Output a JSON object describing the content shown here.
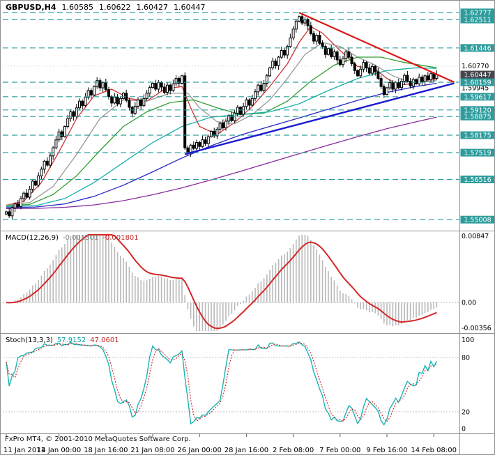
{
  "header": {
    "symbol_period": "GBPUSD,H4",
    "open": "1.60585",
    "high": "1.60622",
    "low": "1.60427",
    "close": "1.60447"
  },
  "price_scale": {
    "plain_labels": [
      {
        "label": "1.60770",
        "price": 1.6077
      },
      {
        "label": "1.59945",
        "price": 1.59945
      }
    ],
    "current": {
      "label": "1.60447",
      "price": 1.60447
    }
  },
  "macd_panel": {
    "label": "MACD(12,26,9)",
    "main_value": "-0.001301",
    "signal_value": "-0.001801",
    "scale_top": "0.00847",
    "scale_zero": "0.00",
    "scale_bottom": "-0.00356"
  },
  "stoch_panel": {
    "label": "Stoch(13,3,3)",
    "k_value": "57.9152",
    "d_value": "47.0601",
    "scale": [
      {
        "label": "100",
        "value": 100
      },
      {
        "label": "80",
        "value": 80
      },
      {
        "label": "20",
        "value": 20
      },
      {
        "label": "0",
        "value": 0
      }
    ]
  },
  "footer": {
    "copyright": "FxPro MT4, © 2001-2010 MetaQuotes Software Corp."
  },
  "time_axis": [
    {
      "label": "11 Jan 2011",
      "index": 0
    },
    {
      "label": "14 Jan 00:00",
      "index": 18
    },
    {
      "label": "18 Jan 16:00",
      "index": 34
    },
    {
      "label": "21 Jan 08:00",
      "index": 50
    },
    {
      "label": "26 Jan 00:00",
      "index": 66
    },
    {
      "label": "28 Jan 16:00",
      "index": 82
    },
    {
      "label": "2 Feb 08:00",
      "index": 98
    },
    {
      "label": "7 Feb 00:00",
      "index": 114
    },
    {
      "label": "9 Feb 16:00",
      "index": 130
    },
    {
      "label": "14 Feb 08:00",
      "index": 146
    }
  ],
  "colors": {
    "level": "#2e9c9c",
    "current_box": "#45454d",
    "bull": "#ffffff",
    "bear": "#000000",
    "candle_outline": "#000000",
    "macd_histogram": "#b9b9b9",
    "macd_signal": "#d42727",
    "stoch_k": "#1ab3b3",
    "stoch_d": "#cc3030",
    "grid": "#c9c9c9",
    "divider": "#8f8f8f"
  },
  "chart_data": {
    "type": "candlestick",
    "title": "GBPUSD,H4",
    "timeframe": "H4",
    "symbol": "GBPUSD",
    "y_range": [
      1.547,
      1.6306
    ],
    "x_labels": [
      "11 Jan 2011",
      "14 Jan 00:00",
      "18 Jan 16:00",
      "21 Jan 08:00",
      "26 Jan 00:00",
      "28 Jan 16:00",
      "2 Feb 08:00",
      "7 Feb 00:00",
      "9 Feb 16:00",
      "14 Feb 08:00"
    ],
    "closes": [
      1.553,
      1.5515,
      1.5545,
      1.556,
      1.555,
      1.558,
      1.56,
      1.5585,
      1.5615,
      1.5645,
      1.563,
      1.5665,
      1.569,
      1.572,
      1.5705,
      1.574,
      1.577,
      1.58,
      1.583,
      1.5812,
      1.585,
      1.588,
      1.5905,
      1.5888,
      1.592,
      1.5945,
      1.5928,
      1.596,
      1.5985,
      1.5968,
      1.6,
      1.6022,
      1.5995,
      1.6015,
      1.5988,
      1.5962,
      1.5938,
      1.596,
      1.5935,
      1.5955,
      1.5975,
      1.5948,
      1.5922,
      1.59,
      1.5926,
      1.595,
      1.5928,
      1.5955,
      1.5975,
      1.5996,
      1.6012,
      1.599,
      1.6015,
      1.5998,
      1.5978,
      1.6005,
      1.5985,
      1.601,
      1.603,
      1.6012,
      1.604,
      1.577,
      1.5752,
      1.578,
      1.5768,
      1.579,
      1.5775,
      1.58,
      1.5786,
      1.5812,
      1.5832,
      1.5815,
      1.584,
      1.5862,
      1.5845,
      1.587,
      1.589,
      1.5872,
      1.59,
      1.5922,
      1.5896,
      1.5925,
      1.595,
      1.593,
      1.5955,
      1.598,
      1.6005,
      1.5985,
      1.6012,
      1.604,
      1.607,
      1.6095,
      1.6078,
      1.611,
      1.6135,
      1.6118,
      1.615,
      1.6182,
      1.6215,
      1.6245,
      1.6262,
      1.6238,
      1.6252,
      1.6228,
      1.6198,
      1.617,
      1.6192,
      1.6162,
      1.615,
      1.612,
      1.6142,
      1.6112,
      1.613,
      1.61,
      1.6082,
      1.6105,
      1.613,
      1.611,
      1.6085,
      1.606,
      1.604,
      1.6065,
      1.609,
      1.607,
      1.605,
      1.6075,
      1.6055,
      1.603,
      1.6,
      1.597,
      1.5995,
      1.6015,
      1.599,
      1.6015,
      1.5996,
      1.602,
      1.6042,
      1.602,
      1.6002,
      1.6026,
      1.601,
      1.6035,
      1.6018,
      1.604,
      1.6025,
      1.6048,
      1.603,
      1.6045
    ],
    "levels": [
      {
        "label": "1.62777",
        "price": 1.62777
      },
      {
        "label": "1.62511",
        "price": 1.62511
      },
      {
        "label": "1.61446",
        "price": 1.61446
      },
      {
        "label": "1.60159",
        "price": 1.60159
      },
      {
        "label": "1.59617",
        "price": 1.59617
      },
      {
        "label": "1.59120",
        "price": 1.5912
      },
      {
        "label": "1.58875",
        "price": 1.58875
      },
      {
        "label": "1.58175",
        "price": 1.58175
      },
      {
        "label": "1.57519",
        "price": 1.57519
      },
      {
        "label": "1.56516",
        "price": 1.56516
      },
      {
        "label": "1.55008",
        "price": 1.55008
      }
    ],
    "trendlines": [
      {
        "name": "descending-resistance-line",
        "color": "#e01818",
        "width": 2.2,
        "from": [
          100,
          1.6277
        ],
        "to": [
          153,
          1.6016
        ]
      },
      {
        "name": "ascending-support-line",
        "color": "#1a1ad0",
        "width": 2.4,
        "from": [
          61,
          1.5746
        ],
        "to": [
          153,
          1.6012
        ]
      }
    ],
    "moving_averages": [
      {
        "name": "ma-fast-red",
        "color": "#d03030",
        "points": [
          [
            0,
            1.5555
          ],
          [
            6,
            1.557
          ],
          [
            12,
            1.564
          ],
          [
            18,
            1.5755
          ],
          [
            24,
            1.588
          ],
          [
            30,
            1.5965
          ],
          [
            36,
            1.599
          ],
          [
            42,
            1.5955
          ],
          [
            48,
            1.5945
          ],
          [
            54,
            1.599
          ],
          [
            60,
            1.6
          ],
          [
            63,
            1.592
          ],
          [
            66,
            1.585
          ],
          [
            72,
            1.582
          ],
          [
            78,
            1.5865
          ],
          [
            84,
            1.5925
          ],
          [
            90,
            1.6
          ],
          [
            96,
            1.6085
          ],
          [
            100,
            1.6165
          ],
          [
            104,
            1.6225
          ],
          [
            108,
            1.62
          ],
          [
            114,
            1.6135
          ],
          [
            120,
            1.6075
          ],
          [
            126,
            1.6065
          ],
          [
            130,
            1.603
          ],
          [
            134,
            1.6005
          ],
          [
            138,
            1.601
          ],
          [
            142,
            1.6022
          ],
          [
            147,
            1.6028
          ]
        ]
      },
      {
        "name": "ma-gray",
        "color": "#999999",
        "points": [
          [
            0,
            1.5555
          ],
          [
            8,
            1.5565
          ],
          [
            16,
            1.5625
          ],
          [
            24,
            1.5745
          ],
          [
            32,
            1.588
          ],
          [
            40,
            1.595
          ],
          [
            48,
            1.5945
          ],
          [
            56,
            1.5975
          ],
          [
            62,
            1.5975
          ],
          [
            66,
            1.592
          ],
          [
            72,
            1.5868
          ],
          [
            78,
            1.586
          ],
          [
            84,
            1.5895
          ],
          [
            90,
            1.595
          ],
          [
            96,
            1.603
          ],
          [
            102,
            1.612
          ],
          [
            108,
            1.6165
          ],
          [
            114,
            1.615
          ],
          [
            120,
            1.611
          ],
          [
            126,
            1.608
          ],
          [
            132,
            1.604
          ],
          [
            138,
            1.6015
          ],
          [
            147,
            1.6022
          ]
        ]
      },
      {
        "name": "ma-green",
        "color": "#2f9e2f",
        "points": [
          [
            0,
            1.5552
          ],
          [
            8,
            1.5558
          ],
          [
            16,
            1.5595
          ],
          [
            24,
            1.5665
          ],
          [
            32,
            1.576
          ],
          [
            40,
            1.585
          ],
          [
            48,
            1.5905
          ],
          [
            56,
            1.594
          ],
          [
            64,
            1.595
          ],
          [
            72,
            1.592
          ],
          [
            80,
            1.5895
          ],
          [
            88,
            1.59
          ],
          [
            96,
            1.5945
          ],
          [
            104,
            1.602
          ],
          [
            112,
            1.608
          ],
          [
            120,
            1.611
          ],
          [
            128,
            1.611
          ],
          [
            136,
            1.609
          ],
          [
            147,
            1.607
          ]
        ]
      },
      {
        "name": "ma-teal",
        "color": "#18b0a8",
        "points": [
          [
            0,
            1.555
          ],
          [
            10,
            1.5553
          ],
          [
            20,
            1.558
          ],
          [
            30,
            1.564
          ],
          [
            40,
            1.5715
          ],
          [
            50,
            1.579
          ],
          [
            60,
            1.585
          ],
          [
            70,
            1.5885
          ],
          [
            80,
            1.5895
          ],
          [
            90,
            1.5905
          ],
          [
            100,
            1.5935
          ],
          [
            110,
            1.5985
          ],
          [
            120,
            1.603
          ],
          [
            130,
            1.606
          ],
          [
            140,
            1.607
          ],
          [
            147,
            1.6068
          ]
        ]
      },
      {
        "name": "ma-blue",
        "color": "#2525c8",
        "points": [
          [
            0,
            1.5546
          ],
          [
            10,
            1.5548
          ],
          [
            20,
            1.556
          ],
          [
            30,
            1.5588
          ],
          [
            40,
            1.563
          ],
          [
            50,
            1.568
          ],
          [
            60,
            1.5732
          ],
          [
            70,
            1.5778
          ],
          [
            80,
            1.5818
          ],
          [
            90,
            1.585
          ],
          [
            100,
            1.5882
          ],
          [
            110,
            1.5915
          ],
          [
            120,
            1.5948
          ],
          [
            130,
            1.5978
          ],
          [
            140,
            1.6
          ],
          [
            147,
            1.6012
          ]
        ]
      },
      {
        "name": "ma-purple",
        "color": "#8a2b9e",
        "points": [
          [
            0,
            1.5542
          ],
          [
            10,
            1.5543
          ],
          [
            20,
            1.5547
          ],
          [
            30,
            1.5556
          ],
          [
            40,
            1.5572
          ],
          [
            50,
            1.5594
          ],
          [
            60,
            1.562
          ],
          [
            70,
            1.565
          ],
          [
            80,
            1.5682
          ],
          [
            90,
            1.5715
          ],
          [
            100,
            1.5748
          ],
          [
            110,
            1.578
          ],
          [
            120,
            1.5812
          ],
          [
            130,
            1.5842
          ],
          [
            140,
            1.5868
          ],
          [
            147,
            1.5885
          ]
        ]
      }
    ],
    "indicators": [
      {
        "type": "MACD",
        "params": [
          12,
          26,
          9
        ],
        "current": [
          -0.001301,
          -0.001801
        ],
        "scale": [
          -0.00356,
          0.00847
        ]
      },
      {
        "type": "Stochastic",
        "params": [
          13,
          3,
          3
        ],
        "current": [
          57.9152,
          47.0601
        ],
        "scale": [
          0,
          100
        ]
      }
    ]
  }
}
